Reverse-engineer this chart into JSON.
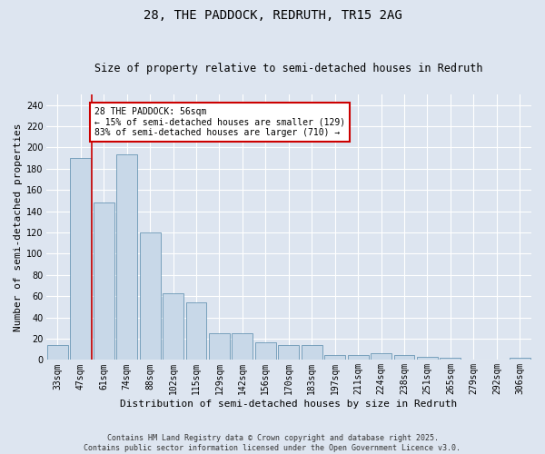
{
  "title": "28, THE PADDOCK, REDRUTH, TR15 2AG",
  "subtitle": "Size of property relative to semi-detached houses in Redruth",
  "xlabel": "Distribution of semi-detached houses by size in Redruth",
  "ylabel": "Number of semi-detached properties",
  "bar_labels": [
    "33sqm",
    "47sqm",
    "61sqm",
    "74sqm",
    "88sqm",
    "102sqm",
    "115sqm",
    "129sqm",
    "142sqm",
    "156sqm",
    "170sqm",
    "183sqm",
    "197sqm",
    "211sqm",
    "224sqm",
    "238sqm",
    "251sqm",
    "265sqm",
    "279sqm",
    "292sqm",
    "306sqm"
  ],
  "bar_values": [
    14,
    190,
    148,
    194,
    120,
    63,
    54,
    25,
    25,
    17,
    14,
    14,
    5,
    5,
    6,
    5,
    3,
    2,
    0,
    0,
    2
  ],
  "bar_color": "#c8d8e8",
  "bar_edge_color": "#5588aa",
  "red_line_x": 1.5,
  "ylim": [
    0,
    250
  ],
  "yticks": [
    0,
    20,
    40,
    60,
    80,
    100,
    120,
    140,
    160,
    180,
    200,
    220,
    240
  ],
  "annotation_text": "28 THE PADDOCK: 56sqm\n← 15% of semi-detached houses are smaller (129)\n83% of semi-detached houses are larger (710) →",
  "annotation_box_color": "#ffffff",
  "annotation_box_edge": "#cc0000",
  "footer_line1": "Contains HM Land Registry data © Crown copyright and database right 2025.",
  "footer_line2": "Contains public sector information licensed under the Open Government Licence v3.0.",
  "background_color": "#dde5f0",
  "plot_background": "#dde5f0",
  "grid_color": "#ffffff",
  "title_fontsize": 10,
  "subtitle_fontsize": 8.5,
  "xlabel_fontsize": 8,
  "ylabel_fontsize": 8,
  "tick_fontsize": 7,
  "ann_fontsize": 7,
  "footer_fontsize": 6
}
